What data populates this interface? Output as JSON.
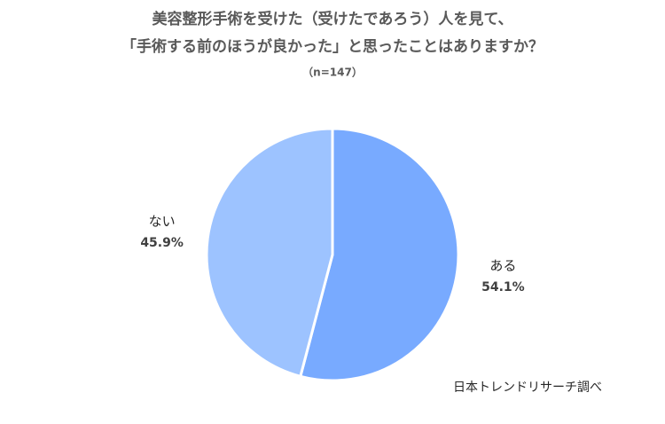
{
  "chart_data": {
    "type": "pie",
    "title": [
      "美容整形手術を受けた（受けたであろう）人を見て、",
      "「手術する前のほうが良かった」と思ったことはありますか？"
    ],
    "subtitle": "（n=147）",
    "categories": [
      "ある",
      "ない"
    ],
    "values": [
      54.1,
      45.9
    ],
    "value_labels": [
      "54.1%",
      "45.9%"
    ],
    "colors": [
      "#78aaff",
      "#9dc3ff"
    ],
    "source": "日本トレンドリサーチ調べ"
  }
}
